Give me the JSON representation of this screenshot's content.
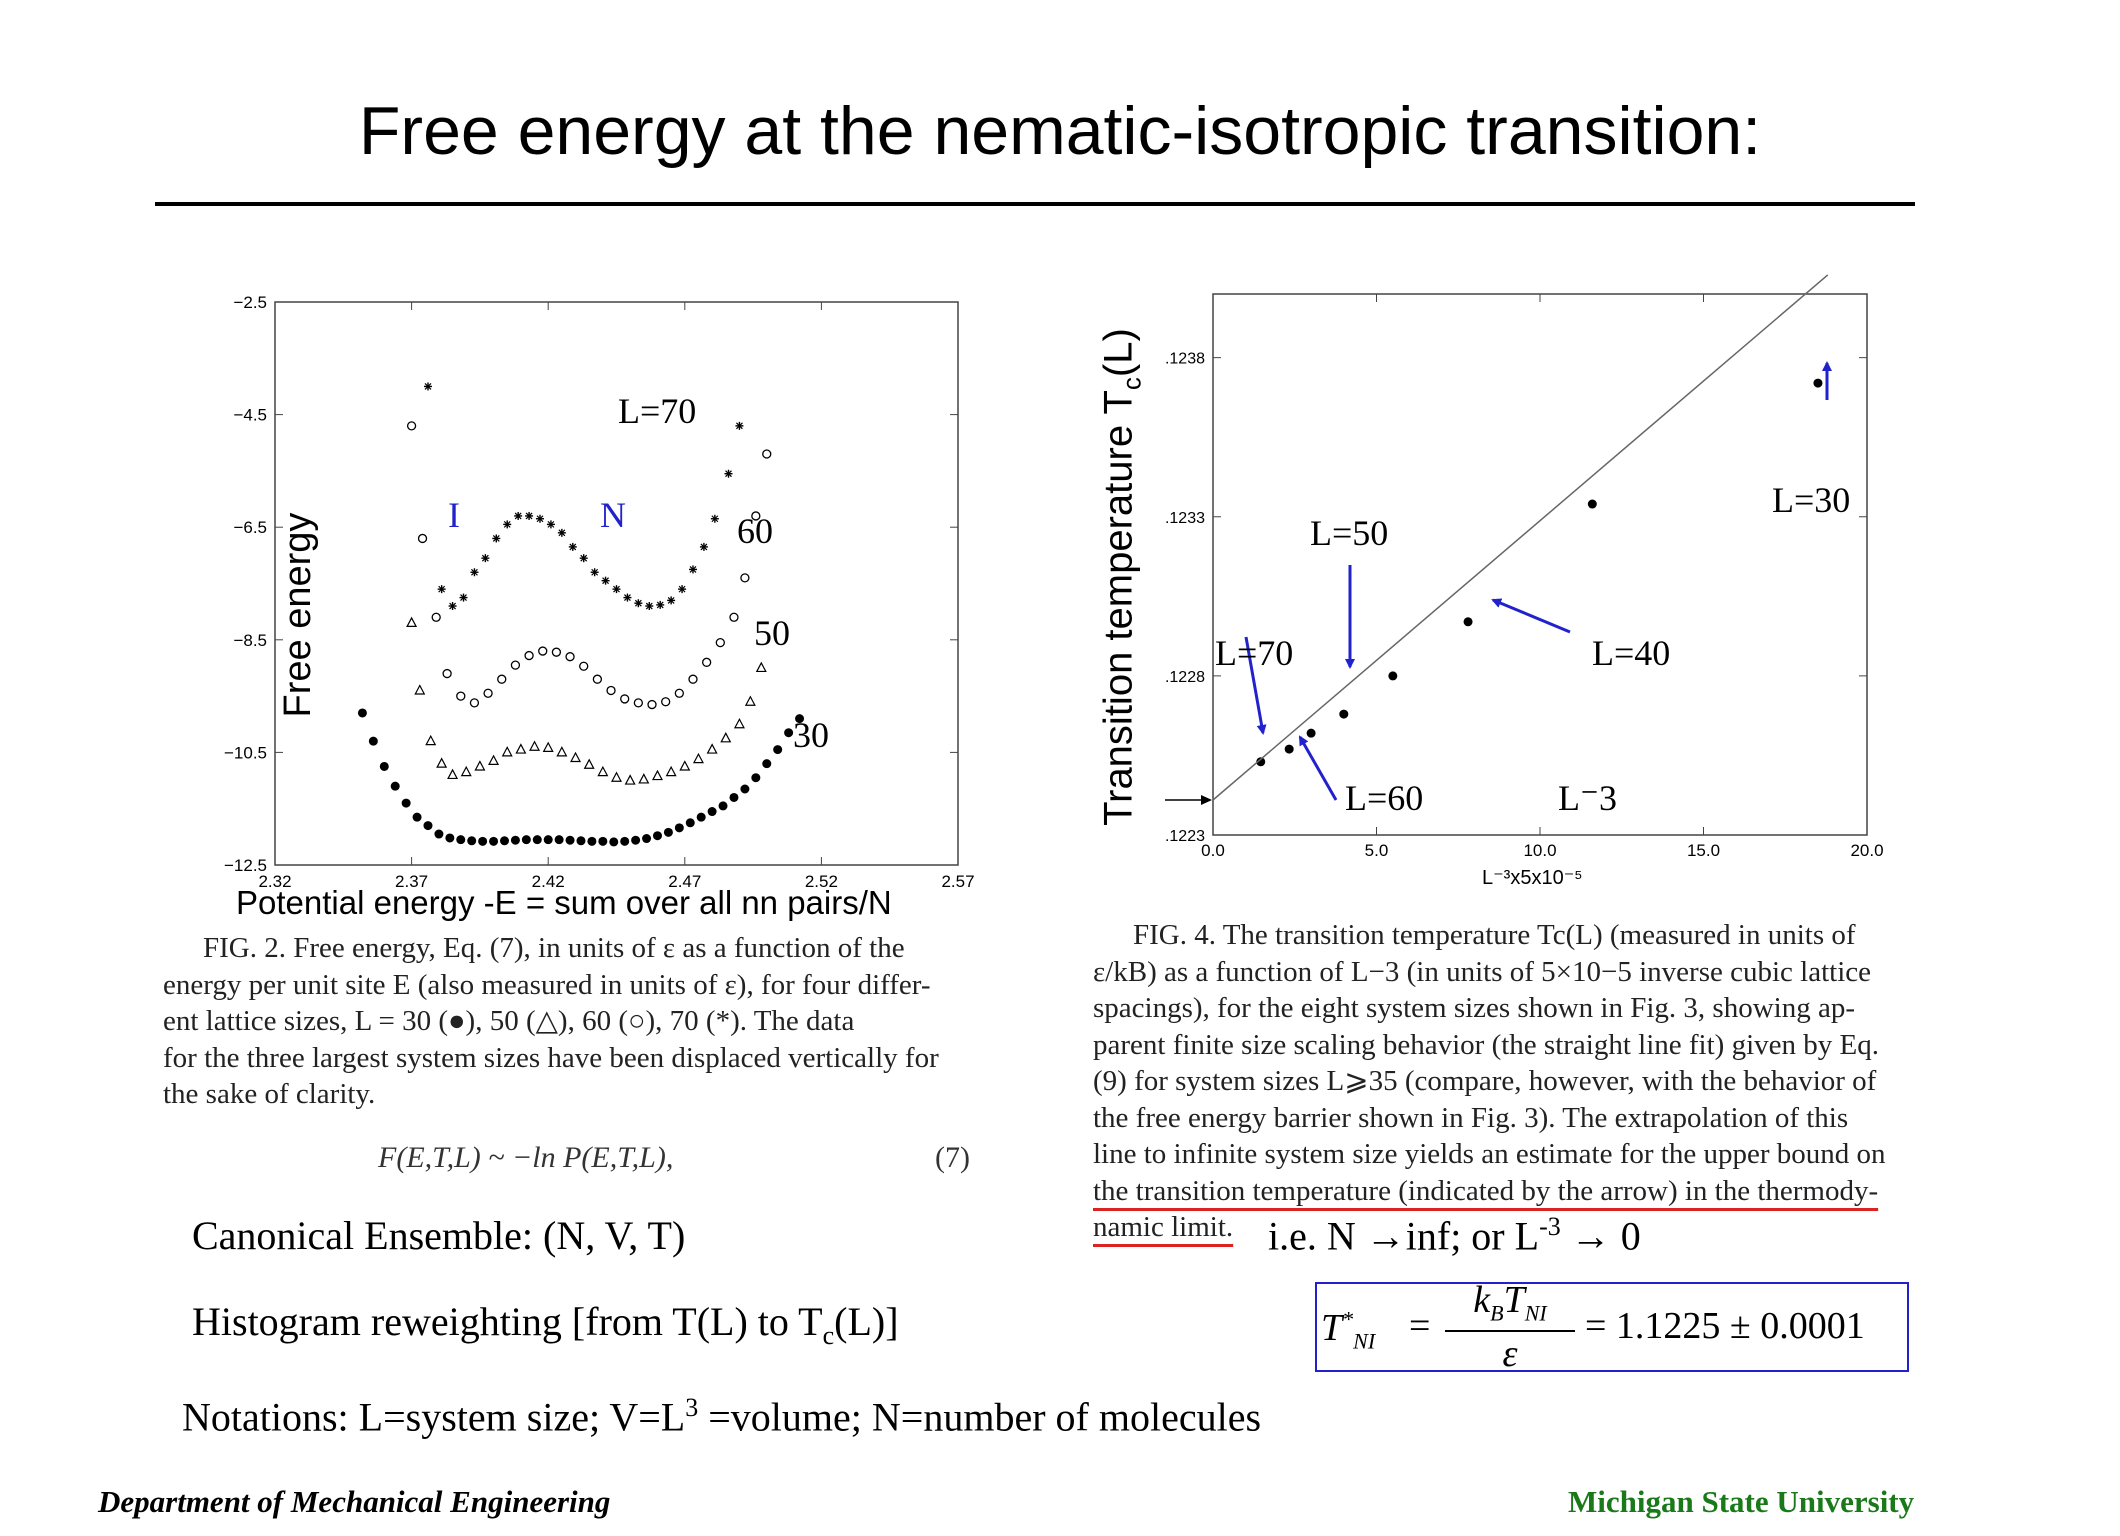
{
  "slide": {
    "title": "Free energy at the nematic-isotropic transition:",
    "footer_left": "Department of Mechanical Engineering",
    "footer_right": "Michigan State University",
    "canonical": "Canonical Ensemble: (N, V, T)",
    "histogram_pre": "Histogram reweighting [from T(L) to T",
    "histogram_sub": "c",
    "histogram_post": "(L)]",
    "notation_pre": "Notations: L=system size; V=L",
    "notation_sup": "3",
    "notation_post": " =volume; N=number of molecules",
    "limit_pre": "i.e. N →inf; or L",
    "limit_sup": "-3",
    "limit_post": " → 0",
    "left_ylabel": "Free energy",
    "left_xlabel": "Potential energy -E = sum over all nn pairs/N",
    "right_ylabel_pre": "Transition temperature T",
    "right_ylabel_sub": "c",
    "right_ylabel_post": "(L)",
    "fig2_caption": [
      "FIG. 2. Free energy, Eq. (7), in units of ε as a function of the",
      "energy per unit site E (also measured in units of ε), for four differ-",
      "ent lattice sizes, L = 30 (●), 50 (△), 60 (○), 70 (*). The data",
      "for the three largest system sizes have been displaced vertically for",
      "the sake of clarity."
    ],
    "eq7": "F(E,T,L) ~ −ln P(E,T,L),",
    "eq7_num": "(7)",
    "fig4_caption": [
      "FIG. 4. The transition temperature Tc(L) (measured in units of",
      "ε/kB) as a function of L−3 (in units of 5×10−5 inverse cubic lattice",
      "spacings), for the eight system sizes shown in Fig. 3, showing ap-",
      "parent finite size scaling behavior (the straight line fit) given by Eq.",
      "(9) for system sizes L⩾35 (compare, however, with the behavior of",
      "the free energy barrier shown in Fig. 3). The extrapolation of this",
      "line to infinite system size yields an estimate for the upper bound on",
      "the transition temperature (indicated by the arrow) in the thermody-",
      "namic limit."
    ],
    "eq_tni_lhs": "T*NI",
    "eq_tni_num": "kBTNI",
    "eq_tni_den": "ε",
    "eq_tni_rhs": "= 1.1225 ± 0.0001",
    "eq_equals": "="
  },
  "colors": {
    "annotation_blue": "#2222cc",
    "underline_red": "#dd2222",
    "footer_green": "#1a7a1a"
  },
  "chart_data": [
    {
      "type": "scatter",
      "title": "",
      "xlabel": "Potential energy -E = sum over all nn pairs/N",
      "ylabel": "Free energy",
      "xlim": [
        2.32,
        2.57
      ],
      "ylim": [
        -12.5,
        -2.5
      ],
      "xticks": [
        "2.32",
        "2.37",
        "2.42",
        "2.47",
        "2.52",
        "2.57"
      ],
      "yticks": [
        "-2.5",
        "-4.5",
        "-6.5",
        "-8.5",
        "-10.5",
        "-12.5"
      ],
      "annotations": [
        "L=70",
        "60",
        "50",
        "30",
        "I",
        "N"
      ],
      "series": [
        {
          "name": "30",
          "marker": "filled-circle",
          "x": [
            2.352,
            2.356,
            2.36,
            2.364,
            2.368,
            2.372,
            2.376,
            2.38,
            2.384,
            2.388,
            2.392,
            2.396,
            2.4,
            2.404,
            2.408,
            2.412,
            2.416,
            2.42,
            2.424,
            2.428,
            2.432,
            2.436,
            2.44,
            2.444,
            2.448,
            2.452,
            2.456,
            2.46,
            2.464,
            2.468,
            2.472,
            2.476,
            2.48,
            2.484,
            2.488,
            2.492,
            2.496,
            2.5,
            2.504,
            2.508,
            2.512
          ],
          "y": [
            -9.8,
            -10.3,
            -10.75,
            -11.1,
            -11.4,
            -11.65,
            -11.8,
            -11.95,
            -12.02,
            -12.05,
            -12.07,
            -12.08,
            -12.08,
            -12.07,
            -12.06,
            -12.05,
            -12.05,
            -12.05,
            -12.05,
            -12.06,
            -12.07,
            -12.08,
            -12.08,
            -12.09,
            -12.08,
            -12.06,
            -12.03,
            -11.98,
            -11.92,
            -11.84,
            -11.75,
            -11.65,
            -11.55,
            -11.45,
            -11.3,
            -11.15,
            -10.95,
            -10.7,
            -10.45,
            -10.15,
            -9.9
          ]
        },
        {
          "name": "50",
          "marker": "open-triangle",
          "x": [
            2.37,
            2.373,
            2.377,
            2.381,
            2.385,
            2.39,
            2.395,
            2.4,
            2.405,
            2.41,
            2.415,
            2.42,
            2.425,
            2.43,
            2.435,
            2.44,
            2.445,
            2.45,
            2.455,
            2.46,
            2.465,
            2.47,
            2.475,
            2.48,
            2.485,
            2.49,
            2.494,
            2.498
          ],
          "y": [
            -8.2,
            -9.4,
            -10.3,
            -10.7,
            -10.9,
            -10.85,
            -10.75,
            -10.65,
            -10.5,
            -10.45,
            -10.4,
            -10.42,
            -10.5,
            -10.6,
            -10.72,
            -10.85,
            -10.95,
            -11.0,
            -10.98,
            -10.92,
            -10.85,
            -10.75,
            -10.62,
            -10.45,
            -10.25,
            -10.0,
            -9.6,
            -9.0
          ]
        },
        {
          "name": "60",
          "marker": "open-circle",
          "x": [
            2.37,
            2.374,
            2.379,
            2.383,
            2.388,
            2.393,
            2.398,
            2.403,
            2.408,
            2.413,
            2.418,
            2.423,
            2.428,
            2.433,
            2.438,
            2.443,
            2.448,
            2.453,
            2.458,
            2.463,
            2.468,
            2.473,
            2.478,
            2.483,
            2.488,
            2.492,
            2.496,
            2.5
          ],
          "y": [
            -4.7,
            -6.7,
            -8.1,
            -9.1,
            -9.5,
            -9.62,
            -9.45,
            -9.2,
            -8.95,
            -8.78,
            -8.7,
            -8.72,
            -8.8,
            -8.97,
            -9.2,
            -9.4,
            -9.55,
            -9.62,
            -9.65,
            -9.6,
            -9.45,
            -9.2,
            -8.9,
            -8.55,
            -8.1,
            -7.4,
            -6.3,
            -5.2
          ]
        },
        {
          "name": "70",
          "marker": "asterisk",
          "x": [
            2.376,
            2.381,
            2.385,
            2.389,
            2.393,
            2.397,
            2.401,
            2.405,
            2.409,
            2.413,
            2.417,
            2.421,
            2.425,
            2.429,
            2.433,
            2.437,
            2.441,
            2.445,
            2.449,
            2.453,
            2.457,
            2.461,
            2.465,
            2.469,
            2.473,
            2.477,
            2.481,
            2.486,
            2.49
          ],
          "y": [
            -4.0,
            -7.6,
            -7.9,
            -7.75,
            -7.3,
            -7.05,
            -6.7,
            -6.45,
            -6.3,
            -6.3,
            -6.35,
            -6.45,
            -6.6,
            -6.85,
            -7.05,
            -7.3,
            -7.45,
            -7.6,
            -7.75,
            -7.85,
            -7.9,
            -7.88,
            -7.8,
            -7.6,
            -7.25,
            -6.85,
            -6.35,
            -5.55,
            -4.7
          ]
        }
      ]
    },
    {
      "type": "scatter",
      "title": "",
      "xlabel": "L⁻³x5x10⁻⁵",
      "ylabel": "Transition temperature Tc(L)",
      "xlim": [
        0.0,
        20.0
      ],
      "ylim": [
        0.1223,
        0.124
      ],
      "xticks": [
        "0.0",
        "5.0",
        "10.0",
        "15.0",
        "20.0"
      ],
      "yticks": [
        ".1223",
        ".1228",
        ".1233",
        ".1238"
      ],
      "annotations": [
        "L=30",
        "L=50",
        "L=40",
        "L=70",
        "L=60",
        "L⁻3"
      ],
      "series": [
        {
          "name": "",
          "marker": "filled-circle",
          "x": [
            1.46,
            2.33,
            3.0,
            4.0,
            5.5,
            7.8,
            11.6,
            18.5
          ],
          "y": [
            0.12253,
            0.12257,
            0.12262,
            0.12268,
            0.1228,
            0.12297,
            0.12334,
            0.12372
          ]
        },
        {
          "name": "",
          "type": "line",
          "x": [
            0.0,
            18.8
          ],
          "y": [
            0.12241,
            0.12406
          ]
        }
      ],
      "arrow_at_y": 0.12241
    }
  ]
}
